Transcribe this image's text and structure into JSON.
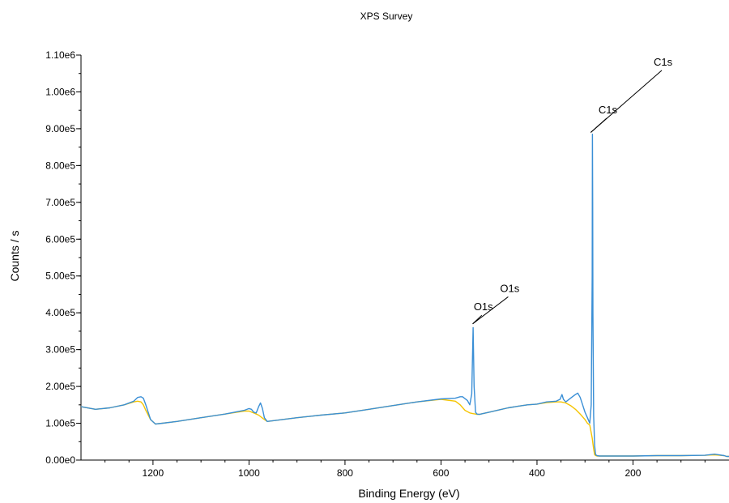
{
  "chart_data": {
    "type": "line",
    "title": "XPS Survey",
    "xlabel": "Binding Energy (eV)",
    "ylabel": "Counts / s",
    "xlim": [
      1350,
      0
    ],
    "ylim": [
      0,
      1100000
    ],
    "x_reversed": true,
    "x_ticks": [
      1200,
      1000,
      800,
      600,
      400,
      200
    ],
    "x_tick_labels": [
      "1200",
      "1000",
      "800",
      "600",
      "400",
      "200"
    ],
    "x_minor_step": 50,
    "y_ticks": [
      0,
      100000,
      200000,
      300000,
      400000,
      500000,
      600000,
      700000,
      800000,
      900000,
      1000000,
      1100000
    ],
    "y_tick_labels": [
      "0.00e0",
      "1.00e5",
      "2.00e5",
      "3.00e5",
      "4.00e5",
      "5.00e5",
      "6.00e5",
      "7.00e5",
      "8.00e5",
      "9.00e5",
      "1.00e6",
      "1.10e6"
    ],
    "y_minor_step": 50000,
    "grid": false,
    "series": [
      {
        "color": "#3a8fd6",
        "x": [
          1350,
          1320,
          1290,
          1260,
          1240,
          1232,
          1225,
          1220,
          1215,
          1205,
          1195,
          1180,
          1150,
          1100,
          1050,
          1010,
          1000,
          995,
          990,
          985,
          980,
          976,
          972,
          968,
          962,
          950,
          900,
          850,
          800,
          750,
          700,
          650,
          600,
          570,
          560,
          555,
          545,
          540,
          536,
          533,
          531,
          528,
          525,
          520,
          500,
          480,
          460,
          440,
          420,
          400,
          380,
          360,
          352,
          348,
          345,
          340,
          330,
          320,
          315,
          310,
          305,
          300,
          295,
          290,
          287,
          285,
          284.5,
          284,
          283.5,
          282,
          280,
          278,
          275,
          270,
          250,
          200,
          150,
          100,
          50,
          30,
          20,
          10,
          5,
          0
        ],
        "y": [
          145000,
          138000,
          142000,
          150000,
          160000,
          170000,
          172000,
          168000,
          150000,
          110000,
          98000,
          100000,
          105000,
          115000,
          125000,
          135000,
          140000,
          138000,
          130000,
          128000,
          145000,
          155000,
          140000,
          115000,
          105000,
          107000,
          115000,
          122000,
          128000,
          138000,
          148000,
          158000,
          166000,
          168000,
          172000,
          172000,
          162000,
          150000,
          180000,
          360000,
          200000,
          130000,
          125000,
          124000,
          130000,
          136000,
          142000,
          146000,
          150000,
          152000,
          158000,
          160000,
          165000,
          178000,
          165000,
          158000,
          168000,
          178000,
          182000,
          170000,
          150000,
          130000,
          115000,
          100000,
          150000,
          500000,
          885000,
          700000,
          400000,
          120000,
          40000,
          15000,
          12000,
          11000,
          11000,
          11000,
          12000,
          12000,
          13000,
          16000,
          14000,
          12000,
          10000,
          10000
        ]
      },
      {
        "color": "#f5c400",
        "x": [
          1350,
          1320,
          1290,
          1260,
          1240,
          1232,
          1225,
          1220,
          1215,
          1205,
          1195,
          1180,
          1150,
          1100,
          1050,
          1010,
          1000,
          990,
          980,
          970,
          962,
          950,
          900,
          850,
          800,
          750,
          700,
          650,
          600,
          570,
          560,
          550,
          540,
          533,
          528,
          525,
          520,
          500,
          480,
          460,
          440,
          420,
          400,
          380,
          360,
          350,
          340,
          330,
          320,
          310,
          300,
          295,
          290,
          285,
          282,
          280,
          278,
          275,
          270,
          250,
          200,
          150,
          100,
          50,
          30,
          20,
          10,
          5,
          0
        ],
        "y": [
          145000,
          138000,
          142000,
          150000,
          158000,
          160000,
          158000,
          150000,
          135000,
          110000,
          98000,
          100000,
          105000,
          115000,
          125000,
          133000,
          133000,
          128000,
          122000,
          112000,
          105000,
          107000,
          115000,
          122000,
          128000,
          138000,
          148000,
          158000,
          165000,
          160000,
          150000,
          135000,
          128000,
          126000,
          125000,
          124000,
          124000,
          130000,
          136000,
          142000,
          146000,
          150000,
          152000,
          156000,
          158000,
          158000,
          155000,
          148000,
          138000,
          125000,
          110000,
          100000,
          95000,
          60000,
          30000,
          15000,
          12000,
          11000,
          11000,
          11000,
          11000,
          12000,
          12000,
          13000,
          14000,
          13000,
          12000,
          10000,
          10000
        ]
      }
    ],
    "annotations": [
      {
        "text": "O1s",
        "x": 515,
        "y": 400000,
        "line_from_x": 534,
        "line_from_y": 370000
      },
      {
        "text": "O1s",
        "x": 460,
        "y": 450000,
        "line_from_x": 534,
        "line_from_y": 370000
      },
      {
        "text": "C1s",
        "x": 255,
        "y": 935000,
        "line_from_x": 288,
        "line_from_y": 890000
      },
      {
        "text": "C1s",
        "x": 140,
        "y": 1065000,
        "line_from_x": 288,
        "line_from_y": 890000
      }
    ]
  }
}
